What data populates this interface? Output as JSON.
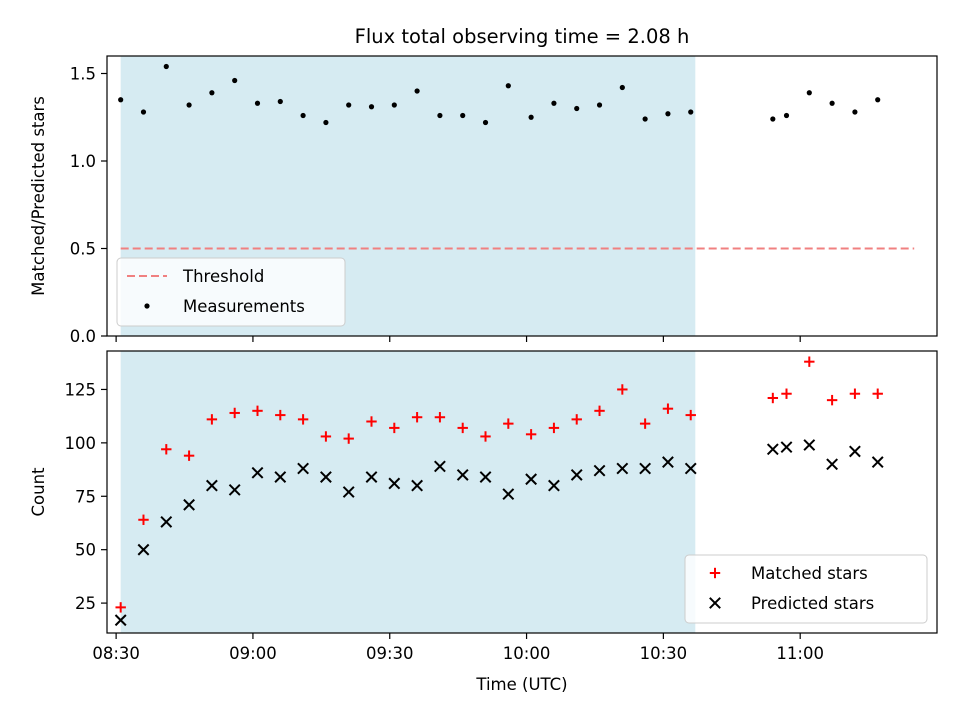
{
  "chart_data": {
    "title": "Flux total observing time = 2.08 h",
    "xlabel": "Time (UTC)",
    "x_ticks": [
      "08:30",
      "09:00",
      "09:30",
      "10:00",
      "10:30",
      "11:00"
    ],
    "shaded_span": {
      "start": "08:31",
      "end": "10:37",
      "color": "#add8e6"
    },
    "panels": [
      {
        "type": "scatter",
        "ylabel": "Matched/Predicted stars",
        "ylim": [
          0,
          1.6
        ],
        "y_ticks": [
          "0.0",
          "0.5",
          "1.0",
          "1.5"
        ],
        "legend_position": "lower-left",
        "series": [
          {
            "name": "Threshold",
            "kind": "dashed-line",
            "color": "#f08080",
            "x": [
              "08:31",
              "11:25"
            ],
            "y": [
              0.5,
              0.5
            ]
          },
          {
            "name": "Measurements",
            "kind": "dot",
            "color": "#000000",
            "x": [
              "08:31",
              "08:36",
              "08:41",
              "08:46",
              "08:51",
              "08:56",
              "09:01",
              "09:06",
              "09:11",
              "09:16",
              "09:21",
              "09:26",
              "09:31",
              "09:36",
              "09:41",
              "09:46",
              "09:51",
              "09:56",
              "10:01",
              "10:06",
              "10:11",
              "10:16",
              "10:21",
              "10:26",
              "10:31",
              "10:36",
              "10:54",
              "10:57",
              "11:02",
              "11:07",
              "11:12",
              "11:17"
            ],
            "y": [
              1.35,
              1.28,
              1.54,
              1.32,
              1.39,
              1.46,
              1.33,
              1.34,
              1.26,
              1.22,
              1.32,
              1.31,
              1.32,
              1.4,
              1.26,
              1.26,
              1.22,
              1.43,
              1.25,
              1.33,
              1.3,
              1.32,
              1.42,
              1.24,
              1.27,
              1.28,
              1.24,
              1.26,
              1.39,
              1.33,
              1.28,
              1.35
            ]
          }
        ]
      },
      {
        "type": "scatter",
        "ylabel": "Count",
        "ylim": [
          11,
          143
        ],
        "y_ticks": [
          "25",
          "50",
          "75",
          "100",
          "125"
        ],
        "legend_position": "lower-right",
        "series": [
          {
            "name": "Matched stars",
            "kind": "plus",
            "color": "#ff0000",
            "x": [
              "08:31",
              "08:36",
              "08:41",
              "08:46",
              "08:51",
              "08:56",
              "09:01",
              "09:06",
              "09:11",
              "09:16",
              "09:21",
              "09:26",
              "09:31",
              "09:36",
              "09:41",
              "09:46",
              "09:51",
              "09:56",
              "10:01",
              "10:06",
              "10:11",
              "10:16",
              "10:21",
              "10:26",
              "10:31",
              "10:36",
              "10:54",
              "10:57",
              "11:02",
              "11:07",
              "11:12",
              "11:17"
            ],
            "y": [
              23,
              64,
              97,
              94,
              111,
              114,
              115,
              113,
              111,
              103,
              102,
              110,
              107,
              112,
              112,
              107,
              103,
              109,
              104,
              107,
              111,
              115,
              125,
              109,
              116,
              113,
              121,
              123,
              138,
              120,
              123,
              123
            ]
          },
          {
            "name": "Predicted stars",
            "kind": "x",
            "color": "#000000",
            "x": [
              "08:31",
              "08:36",
              "08:41",
              "08:46",
              "08:51",
              "08:56",
              "09:01",
              "09:06",
              "09:11",
              "09:16",
              "09:21",
              "09:26",
              "09:31",
              "09:36",
              "09:41",
              "09:46",
              "09:51",
              "09:56",
              "10:01",
              "10:06",
              "10:11",
              "10:16",
              "10:21",
              "10:26",
              "10:31",
              "10:36",
              "10:54",
              "10:57",
              "11:02",
              "11:07",
              "11:12",
              "11:17"
            ],
            "y": [
              17,
              50,
              63,
              71,
              80,
              78,
              86,
              84,
              88,
              84,
              77,
              84,
              81,
              80,
              89,
              85,
              84,
              76,
              83,
              80,
              85,
              87,
              88,
              88,
              91,
              88,
              97,
              98,
              99,
              90,
              96,
              91
            ]
          }
        ]
      }
    ]
  }
}
